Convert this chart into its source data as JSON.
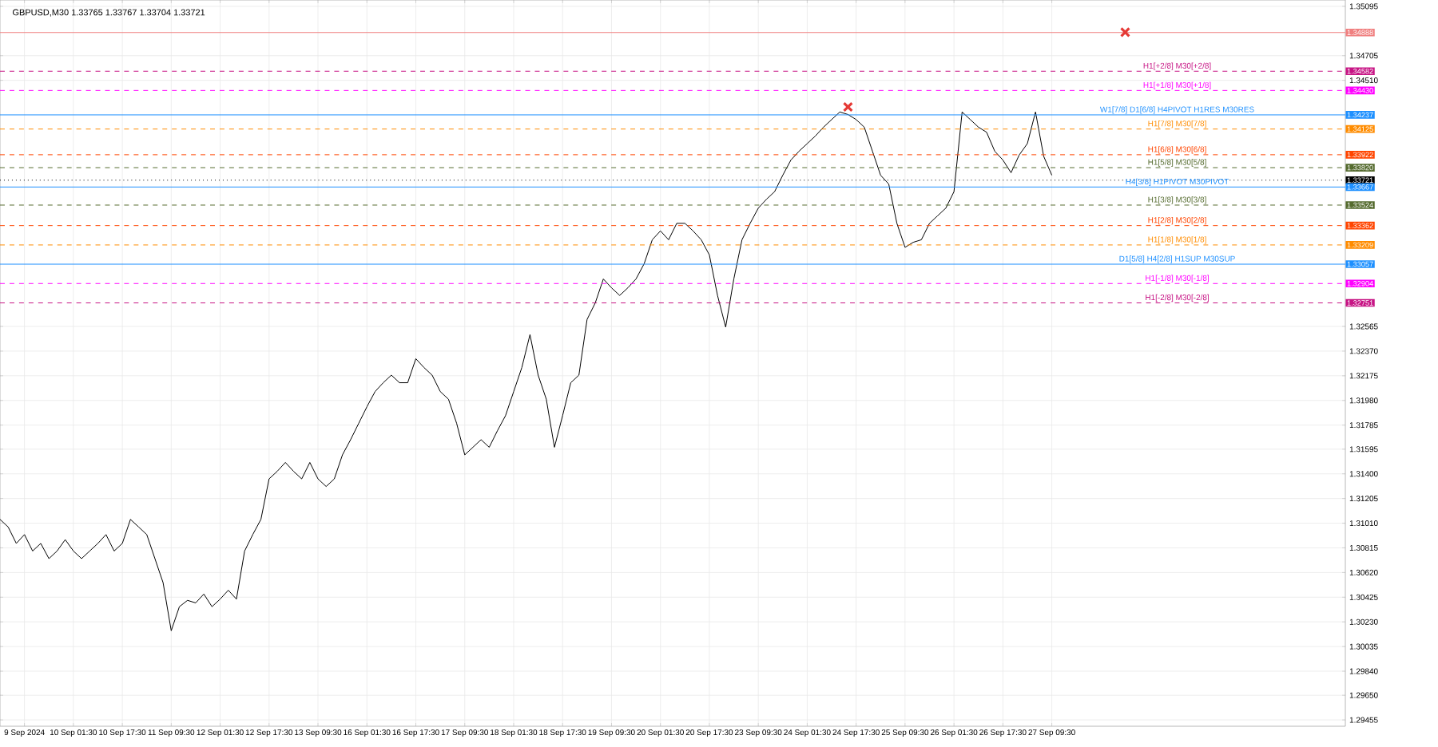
{
  "chart_data": {
    "type": "line",
    "title": "GBPUSD,M30  1.33765 1.33767 1.33704 1.33721",
    "categories": [
      null,
      null,
      null,
      "9 Sep 2024",
      null,
      null,
      null,
      null,
      null,
      "10 Sep 01:30",
      null,
      null,
      null,
      null,
      null,
      "10 Sep 17:30",
      null,
      null,
      null,
      null,
      null,
      "11 Sep 09:30",
      null,
      null,
      null,
      null,
      null,
      "12 Sep 01:30",
      null,
      null,
      null,
      null,
      null,
      "12 Sep 17:30",
      null,
      null,
      null,
      null,
      null,
      "13 Sep 09:30",
      null,
      null,
      null,
      null,
      null,
      "16 Sep 01:30",
      null,
      null,
      null,
      null,
      null,
      "16 Sep 17:30",
      null,
      null,
      null,
      null,
      null,
      "17 Sep 09:30",
      null,
      null,
      null,
      null,
      null,
      "18 Sep 01:30",
      null,
      null,
      null,
      null,
      null,
      "18 Sep 17:30",
      null,
      null,
      null,
      null,
      null,
      "19 Sep 09:30",
      null,
      null,
      null,
      null,
      null,
      "20 Sep 01:30",
      null,
      null,
      null,
      null,
      null,
      "20 Sep 17:30",
      null,
      null,
      null,
      null,
      null,
      "23 Sep 09:30",
      null,
      null,
      null,
      null,
      null,
      "24 Sep 01:30",
      null,
      null,
      null,
      null,
      null,
      "24 Sep 17:30",
      null,
      null,
      null,
      null,
      null,
      "25 Sep 09:30",
      null,
      null,
      null,
      null,
      null,
      "26 Sep 01:30",
      null,
      null,
      null,
      null,
      null,
      "26 Sep 17:30",
      null,
      null,
      null,
      null,
      null,
      "27 Sep 09:30",
      null,
      null,
      null,
      null,
      null,
      null,
      null,
      null,
      null,
      null,
      null,
      null,
      null,
      null,
      null,
      null,
      null,
      null,
      null,
      null,
      null,
      null,
      null,
      null,
      null,
      null,
      null,
      null,
      null,
      null,
      null,
      null,
      null,
      null,
      null,
      null
    ],
    "series": [
      {
        "color": "#000000",
        "values": [
          1.3104,
          1.3098,
          1.3085,
          1.3092,
          1.3079,
          1.3085,
          1.3073,
          1.3079,
          1.3088,
          1.3079,
          1.3073,
          1.3079,
          1.3085,
          1.3092,
          1.3079,
          1.3085,
          1.3104,
          1.3098,
          1.3092,
          1.3073,
          1.3054,
          1.3016,
          1.3035,
          1.304,
          1.3038,
          1.3045,
          1.3035,
          1.3041,
          1.3048,
          1.3041,
          1.3079,
          1.3092,
          1.3104,
          1.3136,
          1.3142,
          1.3149,
          1.3142,
          1.3136,
          1.3149,
          1.3136,
          1.313,
          1.3136,
          1.3155,
          1.3167,
          1.318,
          1.3193,
          1.3205,
          1.3212,
          1.3218,
          1.3212,
          1.3212,
          1.3231,
          1.3224,
          1.3218,
          1.3205,
          1.3199,
          1.318,
          1.3155,
          1.3161,
          1.3167,
          1.3161,
          1.3174,
          1.3186,
          1.3205,
          1.3224,
          1.325,
          1.3218,
          1.3199,
          1.3161,
          1.3186,
          1.3212,
          1.3218,
          1.3262,
          1.3275,
          1.3294,
          1.3287,
          1.3281,
          1.3287,
          1.3294,
          1.3306,
          1.3325,
          1.3332,
          1.3325,
          1.3338,
          1.3338,
          1.3332,
          1.3325,
          1.3313,
          1.3281,
          1.3256,
          1.3294,
          1.3325,
          1.3338,
          1.335,
          1.3357,
          1.3363,
          1.3376,
          1.3388,
          1.3395,
          1.3401,
          1.3407,
          1.3414,
          1.342,
          1.3426,
          1.3424,
          1.342,
          1.3414,
          1.3395,
          1.3376,
          1.3369,
          1.3338,
          1.3319,
          1.3323,
          1.3325,
          1.3338,
          1.3344,
          1.335,
          1.3363,
          1.3426,
          1.342,
          1.3414,
          1.341,
          1.3395,
          1.3388,
          1.3378,
          1.3392,
          1.3401,
          1.3426,
          1.3391,
          1.3376,
          null,
          null,
          null,
          null,
          null,
          null,
          null,
          null,
          null,
          null,
          null,
          null,
          null,
          null,
          null,
          null,
          null,
          null,
          null,
          null,
          null,
          null,
          null,
          null,
          null,
          null,
          null,
          null,
          null,
          null,
          null,
          null,
          null,
          null,
          null,
          null
        ]
      },
      {
        "type": "scatter",
        "color": "#e53935",
        "marker": "cross",
        "values": [
          null,
          null,
          null,
          null,
          null,
          null,
          null,
          null,
          null,
          null,
          null,
          null,
          null,
          null,
          null,
          null,
          null,
          null,
          null,
          null,
          null,
          null,
          null,
          null,
          null,
          null,
          null,
          null,
          null,
          null,
          null,
          null,
          null,
          null,
          null,
          null,
          null,
          null,
          null,
          null,
          null,
          null,
          null,
          null,
          null,
          null,
          null,
          null,
          null,
          null,
          null,
          null,
          null,
          null,
          null,
          null,
          null,
          null,
          null,
          null,
          null,
          null,
          null,
          null,
          null,
          null,
          null,
          null,
          null,
          null,
          null,
          null,
          null,
          null,
          null,
          null,
          null,
          null,
          null,
          null,
          null,
          null,
          null,
          null,
          null,
          null,
          null,
          null,
          null,
          null,
          null,
          null,
          null,
          null,
          null,
          null,
          null,
          null,
          null,
          null,
          null,
          null,
          null,
          null,
          1.343,
          null,
          null,
          null,
          null,
          null,
          null,
          null,
          null,
          null,
          null,
          null,
          null,
          null,
          null,
          null,
          null,
          null,
          null,
          null,
          null,
          null,
          null,
          null,
          null,
          null,
          null,
          null,
          null,
          null,
          null,
          null,
          null,
          null,
          1.3489,
          null,
          null,
          null,
          null,
          null,
          null,
          null,
          null,
          null,
          null,
          null,
          null,
          null,
          null,
          null,
          null,
          null,
          null,
          null,
          null,
          null,
          null,
          null,
          null,
          null,
          null,
          null
        ]
      }
    ],
    "ylim": [
      1.29405,
      1.35145
    ],
    "annotations": [
      "1.34888",
      "1.34582",
      "1.34430",
      "1.34237",
      "1.34125",
      "1.33922",
      "1.33820",
      "1.33721",
      "1.33667",
      "1.33524",
      "1.33362",
      "1.33209",
      "1.33057",
      "1.32904",
      "1.32751"
    ],
    "yticks": [
      {
        "value": 1.35095,
        "label": "1.35095"
      },
      {
        "value": 1.34705,
        "label": "1.34705"
      },
      {
        "value": 1.3451,
        "label": "1.34510"
      },
      {
        "value": 1.32565,
        "label": "1.32565"
      },
      {
        "value": 1.3237,
        "label": "1.32370"
      },
      {
        "value": 1.32175,
        "label": "1.32175"
      },
      {
        "value": 1.3198,
        "label": "1.31980"
      },
      {
        "value": 1.31785,
        "label": "1.31785"
      },
      {
        "value": 1.31595,
        "label": "1.31595"
      },
      {
        "value": 1.314,
        "label": "1.31400"
      },
      {
        "value": 1.31205,
        "label": "1.31205"
      },
      {
        "value": 1.3101,
        "label": "1.31010"
      },
      {
        "value": 1.30815,
        "label": "1.30815"
      },
      {
        "value": 1.3062,
        "label": "1.30620"
      },
      {
        "value": 1.30425,
        "label": "1.30425"
      },
      {
        "value": 1.3023,
        "label": "1.30230"
      },
      {
        "value": 1.30035,
        "label": "1.30035"
      },
      {
        "value": 1.2984,
        "label": "1.29840"
      },
      {
        "value": 1.2965,
        "label": "1.29650"
      },
      {
        "value": 1.29455,
        "label": "1.29455"
      }
    ],
    "grid": true,
    "ref_lines": [
      {
        "axis": "y",
        "value": 1.34888,
        "color": "#f08080",
        "line_style": "solid"
      },
      {
        "axis": "y",
        "value": 1.34582,
        "label": "H1[+2/8] M30[+2/8]",
        "color": "#c71585",
        "line_style": "dashed"
      },
      {
        "axis": "y",
        "value": 1.3443,
        "label": "H1[+1/8] M30[+1/8]",
        "color": "#ff00ff",
        "line_style": "dashed"
      },
      {
        "axis": "y",
        "value": 1.34237,
        "label": "W1[7/8] D1[6/8] H4PIVOT H1RES M30RES",
        "color": "#1e90ff",
        "line_style": "solid"
      },
      {
        "axis": "y",
        "value": 1.34125,
        "label": "H1[7/8] M30[7/8]",
        "color": "#ff8c00",
        "line_style": "dashed"
      },
      {
        "axis": "y",
        "value": 1.33922,
        "label": "H1[6/8] M30[6/8]",
        "color": "#ff4500",
        "line_style": "dashed"
      },
      {
        "axis": "y",
        "value": 1.3382,
        "label": "H1[5/8] M30[5/8]",
        "color": "#556b2f",
        "line_style": "dashed"
      },
      {
        "axis": "y",
        "value": 1.33721,
        "color": "#000000",
        "line_style": "dotted"
      },
      {
        "axis": "y",
        "value": 1.33667,
        "label": "H4[3/8] H1PIVOT M30PIVOT",
        "color": "#1e90ff",
        "line_style": "solid"
      },
      {
        "axis": "y",
        "value": 1.33524,
        "label": "H1[3/8] M30[3/8]",
        "color": "#556b2f",
        "line_style": "dashed"
      },
      {
        "axis": "y",
        "value": 1.33362,
        "label": "H1[2/8] M30[2/8]",
        "color": "#ff4500",
        "line_style": "dashed"
      },
      {
        "axis": "y",
        "value": 1.33209,
        "label": "H1[1/8] M30[1/8]",
        "color": "#ff8c00",
        "line_style": "dashed"
      },
      {
        "axis": "y",
        "value": 1.33057,
        "label": "D1[5/8] H4[2/8] H1SUP M30SUP",
        "color": "#1e90ff",
        "line_style": "solid"
      },
      {
        "axis": "y",
        "value": 1.32904,
        "label": "H1[-1/8] M30[-1/8]",
        "color": "#ff00ff",
        "line_style": "dashed"
      },
      {
        "axis": "y",
        "value": 1.32751,
        "label": "H1[-2/8] M30[-2/8]",
        "color": "#c71585",
        "line_style": "dashed"
      }
    ]
  }
}
